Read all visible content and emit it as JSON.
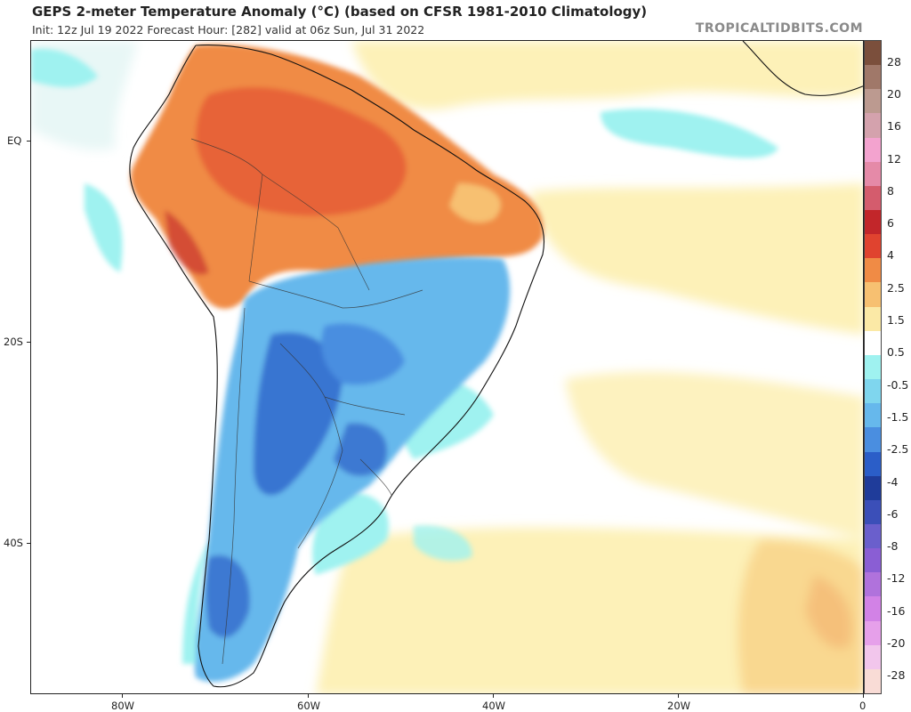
{
  "header": {
    "title": "GEPS 2-meter Temperature Anomaly (°C) (based on CFSR 1981-2010 Climatology)",
    "subtitle": "Init: 12z Jul 19 2022   Forecast Hour: [282]   valid at 06z Sun, Jul 31 2022",
    "brand": "TROPICALTIDBITS.COM"
  },
  "map": {
    "lat_labels": [
      "EQ",
      "20S",
      "40S"
    ],
    "lon_labels": [
      "80W",
      "60W",
      "40W",
      "20W",
      "0"
    ]
  },
  "colorbar": {
    "labels": [
      "28",
      "20",
      "16",
      "12",
      "8",
      "6",
      "4",
      "2.5",
      "1.5",
      "0.5",
      "-0.5",
      "-1.5",
      "-2.5",
      "-4",
      "-6",
      "-8",
      "-12",
      "-16",
      "-20",
      "-28"
    ],
    "colors": [
      "#7b4f3c",
      "#a07869",
      "#bc9a90",
      "#d4a2ad",
      "#f3a3cf",
      "#e58aa8",
      "#d45c6d",
      "#c2262a",
      "#e0432f",
      "#f08b45",
      "#f7c071",
      "#fbe9a6",
      "#ffffff",
      "#9ff2f0",
      "#7fd6ee",
      "#66b8ec",
      "#4a8ee0",
      "#2b5ec8",
      "#1f3c9a",
      "#3b4fb8",
      "#6a5fcc",
      "#8a5ed4",
      "#b072dc",
      "#d282e6",
      "#e6a0ea",
      "#f2c6ec",
      "#f9dcd6"
    ]
  }
}
